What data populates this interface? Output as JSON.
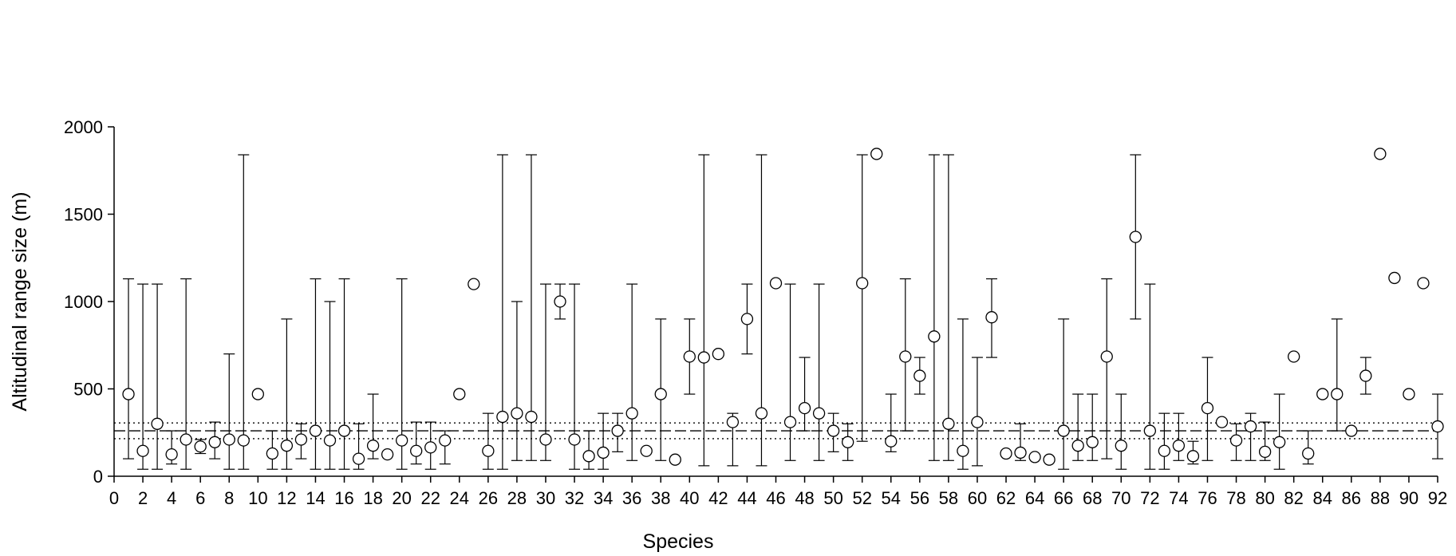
{
  "chart_data": {
    "type": "errorbar",
    "x_label": "Species",
    "y_label": "Altitudinal range size (m)",
    "xlim": [
      0,
      92
    ],
    "ylim": [
      0,
      2000
    ],
    "xticks": [
      0,
      2,
      4,
      6,
      8,
      10,
      12,
      14,
      16,
      18,
      20,
      22,
      24,
      26,
      28,
      30,
      32,
      34,
      36,
      38,
      40,
      42,
      44,
      46,
      48,
      50,
      52,
      54,
      56,
      58,
      60,
      62,
      64,
      66,
      68,
      70,
      72,
      74,
      76,
      78,
      80,
      82,
      84,
      86,
      88,
      90,
      92
    ],
    "yticks": [
      0,
      500,
      1000,
      1500,
      2000
    ],
    "x": [
      1,
      2,
      3,
      4,
      5,
      6,
      7,
      8,
      9,
      10,
      11,
      12,
      13,
      14,
      15,
      16,
      17,
      18,
      19,
      20,
      21,
      22,
      23,
      24,
      25,
      26,
      27,
      28,
      29,
      30,
      31,
      32,
      33,
      34,
      35,
      36,
      37,
      38,
      39,
      40,
      41,
      42,
      43,
      44,
      45,
      46,
      47,
      48,
      49,
      50,
      51,
      52,
      53,
      54,
      55,
      56,
      57,
      58,
      59,
      60,
      61,
      62,
      63,
      64,
      65,
      66,
      67,
      68,
      69,
      70,
      71,
      72,
      73,
      74,
      75,
      76,
      77,
      78,
      79,
      80,
      81,
      82,
      83,
      84,
      85,
      86,
      87,
      88,
      89,
      90,
      91,
      92
    ],
    "values": [
      470,
      145,
      300,
      125,
      210,
      170,
      195,
      210,
      205,
      470,
      130,
      175,
      210,
      260,
      205,
      260,
      100,
      175,
      125,
      205,
      145,
      165,
      205,
      470,
      1100,
      145,
      340,
      360,
      340,
      210,
      1000,
      210,
      115,
      135,
      260,
      360,
      145,
      470,
      95,
      685,
      680,
      700,
      310,
      900,
      360,
      1105,
      310,
      390,
      360,
      260,
      195,
      1105,
      1845,
      200,
      685,
      575,
      800,
      300,
      145,
      310,
      910,
      130,
      135,
      110,
      95,
      260,
      175,
      195,
      685,
      175,
      1370,
      260,
      145,
      175,
      115,
      390,
      310,
      205,
      285,
      140,
      195,
      685,
      130,
      470,
      470,
      260,
      575,
      1845,
      1135,
      470,
      1105,
      285
    ],
    "lower": [
      100,
      40,
      40,
      70,
      40,
      130,
      100,
      40,
      40,
      null,
      40,
      40,
      100,
      40,
      40,
      40,
      40,
      100,
      null,
      40,
      70,
      40,
      70,
      null,
      null,
      40,
      40,
      90,
      90,
      90,
      900,
      40,
      40,
      40,
      140,
      90,
      null,
      90,
      null,
      470,
      60,
      null,
      60,
      700,
      60,
      null,
      90,
      260,
      90,
      140,
      90,
      200,
      null,
      140,
      260,
      470,
      90,
      90,
      40,
      60,
      680,
      null,
      90,
      null,
      null,
      40,
      90,
      90,
      100,
      40,
      900,
      40,
      40,
      90,
      70,
      90,
      null,
      90,
      90,
      90,
      40,
      null,
      70,
      null,
      260,
      null,
      470,
      null,
      null,
      null,
      null,
      100
    ],
    "upper": [
      1130,
      1100,
      1100,
      260,
      1130,
      210,
      310,
      700,
      1840,
      null,
      260,
      900,
      300,
      1130,
      1000,
      1130,
      300,
      470,
      null,
      1130,
      310,
      310,
      260,
      null,
      null,
      360,
      1840,
      1000,
      1840,
      1100,
      1100,
      1100,
      260,
      360,
      360,
      1100,
      null,
      900,
      null,
      900,
      1840,
      null,
      360,
      1100,
      1840,
      null,
      1100,
      680,
      1100,
      360,
      300,
      1840,
      null,
      470,
      1130,
      680,
      1840,
      1840,
      900,
      680,
      1130,
      null,
      300,
      null,
      null,
      900,
      470,
      470,
      1130,
      470,
      1840,
      1100,
      360,
      360,
      200,
      680,
      null,
      300,
      360,
      310,
      470,
      null,
      260,
      null,
      900,
      null,
      680,
      null,
      null,
      null,
      null,
      470
    ],
    "reference_lines": [
      {
        "value": 305,
        "style": "dotted"
      },
      {
        "value": 260,
        "style": "dashed"
      },
      {
        "value": 215,
        "style": "dotted"
      }
    ]
  }
}
